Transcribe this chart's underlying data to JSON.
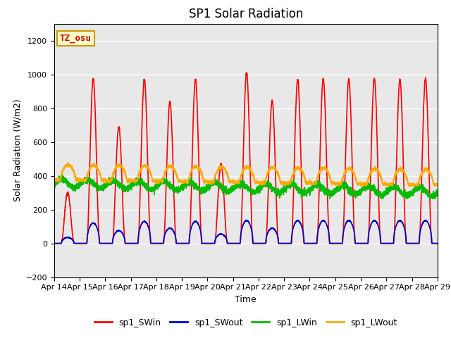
{
  "title": "SP1 Solar Radiation",
  "xlabel": "Time",
  "ylabel": "Solar Radiation (W/m2)",
  "ylim": [
    -200,
    1300
  ],
  "yticks": [
    -200,
    0,
    200,
    400,
    600,
    800,
    1000,
    1200
  ],
  "date_labels": [
    "Apr 14",
    "Apr 15",
    "Apr 16",
    "Apr 17",
    "Apr 18",
    "Apr 19",
    "Apr 20",
    "Apr 21",
    "Apr 22",
    "Apr 23",
    "Apr 24",
    "Apr 25",
    "Apr 26",
    "Apr 27",
    "Apr 28",
    "Apr 29"
  ],
  "colors": {
    "sp1_SWin": "#ff0000",
    "sp1_SWout": "#0000cc",
    "sp1_LWin": "#00bb00",
    "sp1_LWout": "#ffaa00"
  },
  "annotation_text": "TZ_osu",
  "annotation_color": "#cc0000",
  "annotation_bg": "#ffffcc",
  "annotation_border": "#cc9900",
  "plot_bg": "#e8e8e8",
  "title_fontsize": 12,
  "label_fontsize": 9,
  "tick_fontsize": 8,
  "line_width": 1.2,
  "sw_peaks": [
    300,
    975,
    690,
    970,
    840,
    970,
    470,
    1010,
    845,
    970,
    975,
    970,
    975,
    970,
    975
  ],
  "sw_out_peaks": [
    35,
    120,
    75,
    130,
    90,
    130,
    55,
    135,
    90,
    135,
    135,
    135,
    135,
    135,
    135
  ]
}
